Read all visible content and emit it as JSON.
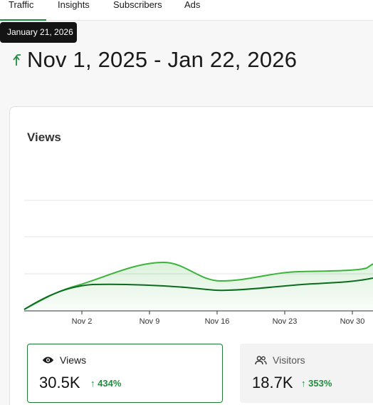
{
  "tabs": [
    {
      "label": "Traffic",
      "active": true
    },
    {
      "label": "Insights",
      "active": false
    },
    {
      "label": "Subscribers",
      "active": false
    },
    {
      "label": "Ads",
      "active": false
    }
  ],
  "tooltip": {
    "text": "January 21, 2026"
  },
  "date_range": {
    "text": "Nov 1, 2025 - Jan 22, 2026",
    "icon": "return-arrow-icon"
  },
  "chart_data": {
    "type": "line",
    "title": "Views",
    "x_tick_labels": [
      "Nov 2",
      "Nov 9",
      "Nov 16",
      "Nov 23",
      "Nov 30"
    ],
    "grid": true,
    "colors": {
      "light": "#3cb43c",
      "dark": "#0b6b1f"
    }
  },
  "metrics": {
    "views": {
      "label": "Views",
      "value": "30.5K",
      "change": "434%",
      "icon": "eye-icon"
    },
    "visitors": {
      "label": "Visitors",
      "value": "18.7K",
      "change": "353%",
      "icon": "users-icon"
    }
  }
}
